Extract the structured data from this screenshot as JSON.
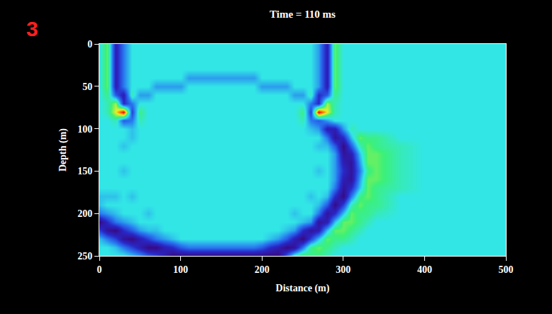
{
  "chart_data": {
    "type": "heatmap",
    "title": "Time = 110 ms",
    "x_label": "Distance (m)",
    "y_label": "Depth (m)",
    "annotations": [
      {
        "text": "3",
        "color": "#ff2020"
      }
    ],
    "grid": false,
    "xlim": [
      0,
      500
    ],
    "ylim": [
      250,
      0
    ],
    "xticks": [
      0,
      100,
      200,
      300,
      400,
      500
    ],
    "yticks": [
      0,
      50,
      100,
      150,
      200,
      250
    ],
    "zlim": [
      -10,
      10
    ],
    "x": [
      0,
      10,
      20,
      30,
      40,
      50,
      60,
      70,
      80,
      90,
      100,
      110,
      120,
      130,
      140,
      150,
      160,
      170,
      180,
      190,
      200,
      210,
      220,
      230,
      240,
      250,
      260,
      270,
      280,
      290,
      300,
      310,
      320,
      330,
      340,
      370,
      400,
      450,
      500
    ],
    "y": [
      0,
      10,
      20,
      30,
      40,
      50,
      60,
      70,
      80,
      90,
      100,
      110,
      120,
      130,
      140,
      150,
      160,
      170,
      180,
      190,
      200,
      210,
      220,
      230,
      240,
      250
    ],
    "z": [
      [
        0,
        3,
        -7,
        -3,
        0,
        0,
        0,
        0,
        0,
        0,
        0,
        0,
        0,
        0,
        0,
        0,
        0,
        0,
        0,
        0,
        0,
        0,
        0,
        0,
        0,
        0,
        0,
        -2,
        -7,
        3,
        0,
        0,
        0,
        0,
        0,
        0,
        0,
        0,
        0
      ],
      [
        0,
        3,
        -7,
        -3,
        0,
        0,
        0,
        0,
        0,
        0,
        0,
        0,
        0,
        0,
        0,
        0,
        0,
        0,
        0,
        0,
        0,
        0,
        0,
        0,
        0,
        0,
        0,
        -2,
        -7,
        3,
        0,
        0,
        0,
        0,
        0,
        0,
        0,
        0,
        0
      ],
      [
        0,
        3,
        -7,
        -3,
        0,
        0,
        0,
        0,
        0,
        0,
        0,
        0,
        0,
        0,
        0,
        0,
        0,
        0,
        0,
        0,
        0,
        0,
        0,
        0,
        0,
        0,
        0,
        -2,
        -7,
        3,
        0,
        0,
        0,
        0,
        0,
        0,
        0,
        0,
        0
      ],
      [
        0,
        3,
        -7,
        -3,
        0,
        0,
        0,
        0,
        0,
        0,
        0,
        0,
        0,
        0,
        0,
        0,
        0,
        0,
        0,
        0,
        0,
        0,
        0,
        0,
        0,
        0,
        0,
        -2,
        -7,
        3,
        0,
        0,
        0,
        0,
        0,
        0,
        0,
        0,
        0
      ],
      [
        0,
        3,
        -7,
        -3,
        0,
        0,
        0,
        0,
        0,
        0,
        0,
        -2,
        -2,
        -2,
        -2,
        -2,
        -2,
        -2,
        -2,
        -2,
        0,
        0,
        0,
        0,
        0,
        0,
        0,
        -2,
        -7,
        3,
        0,
        0,
        0,
        0,
        0,
        0,
        0,
        0,
        0
      ],
      [
        0,
        3,
        -7,
        -3,
        0,
        0,
        0,
        -2,
        -2,
        -2,
        -2,
        0,
        0,
        0,
        0,
        0,
        0,
        0,
        0,
        0,
        -2,
        -2,
        -2,
        -2,
        0,
        0,
        0,
        -2,
        -7,
        3,
        0,
        0,
        0,
        0,
        0,
        0,
        0,
        0,
        0
      ],
      [
        0,
        2,
        -4,
        -7,
        1,
        -2,
        -2,
        0,
        0,
        0,
        0,
        0,
        0,
        0,
        0,
        0,
        0,
        0,
        0,
        0,
        0,
        0,
        0,
        0,
        -2,
        -2,
        1,
        -6,
        -4,
        2,
        0,
        0,
        0,
        0,
        0,
        0,
        0,
        0,
        0
      ],
      [
        0,
        1,
        4,
        -6,
        -3,
        0,
        0,
        0,
        0,
        0,
        0,
        0,
        0,
        0,
        0,
        0,
        0,
        0,
        0,
        0,
        0,
        0,
        0,
        0,
        0,
        0,
        -3,
        -6,
        4,
        1,
        0,
        0,
        0,
        0,
        0,
        0,
        0,
        0,
        0
      ],
      [
        0,
        1,
        5,
        10,
        -5,
        2,
        0,
        0,
        0,
        0,
        0,
        0,
        0,
        0,
        0,
        0,
        0,
        0,
        0,
        0,
        0,
        0,
        0,
        0,
        0,
        2,
        -5,
        10,
        5,
        1,
        0,
        0,
        0,
        0,
        0,
        0,
        0,
        0,
        0
      ],
      [
        0,
        0,
        1,
        -4,
        -3,
        1,
        0,
        0,
        0,
        0,
        0,
        0,
        0,
        0,
        0,
        0,
        0,
        0,
        0,
        0,
        0,
        0,
        0,
        0,
        0,
        1,
        -3,
        -4,
        -2,
        0,
        0,
        0,
        0,
        0,
        0,
        0,
        0,
        0,
        0
      ],
      [
        0,
        0,
        0,
        0,
        -1,
        0,
        0,
        0,
        0,
        0,
        0,
        0,
        0,
        0,
        0,
        0,
        0,
        0,
        0,
        0,
        0,
        0,
        0,
        0,
        0,
        0,
        -1,
        -2,
        -7,
        -7,
        -2,
        1,
        0,
        0,
        0,
        0,
        0,
        0,
        0
      ],
      [
        0,
        0,
        0,
        0,
        -1,
        0,
        0,
        0,
        0,
        0,
        0,
        0,
        0,
        0,
        0,
        0,
        0,
        0,
        0,
        0,
        0,
        0,
        0,
        0,
        0,
        0,
        0,
        0,
        -3,
        -8,
        -6,
        -1,
        3,
        2,
        2,
        0,
        0,
        0,
        0
      ],
      [
        0,
        0,
        0,
        -1,
        0,
        0,
        0,
        0,
        0,
        0,
        0,
        0,
        0,
        0,
        0,
        0,
        0,
        0,
        0,
        0,
        0,
        0,
        0,
        0,
        0,
        0,
        0,
        -1,
        -1,
        -4,
        -9,
        -4,
        1,
        3,
        2,
        1,
        0,
        0,
        0
      ],
      [
        0,
        0,
        0,
        0,
        0,
        0,
        0,
        0,
        0,
        0,
        0,
        0,
        0,
        0,
        0,
        0,
        0,
        0,
        0,
        0,
        0,
        0,
        0,
        0,
        0,
        0,
        0,
        0,
        0,
        -2,
        -8,
        -7,
        -1,
        3,
        3,
        1,
        0,
        0,
        0
      ],
      [
        0,
        0,
        0,
        0,
        0,
        0,
        0,
        0,
        0,
        0,
        0,
        0,
        0,
        0,
        0,
        0,
        0,
        0,
        0,
        0,
        0,
        0,
        0,
        0,
        0,
        0,
        0,
        0,
        0,
        -2,
        -7,
        -8,
        -2,
        3,
        3,
        1,
        0,
        0,
        0
      ],
      [
        0,
        0,
        0,
        -1,
        0,
        0,
        0,
        0,
        0,
        0,
        0,
        0,
        0,
        0,
        0,
        0,
        0,
        0,
        0,
        0,
        0,
        0,
        0,
        0,
        0,
        0,
        0,
        -1,
        0,
        -2,
        -6,
        -8,
        -3,
        2,
        3,
        1,
        0,
        0,
        0
      ],
      [
        0,
        0,
        0,
        0,
        0,
        0,
        0,
        0,
        0,
        0,
        0,
        0,
        0,
        0,
        0,
        0,
        0,
        0,
        0,
        0,
        0,
        0,
        0,
        0,
        0,
        0,
        0,
        0,
        0,
        -2,
        -7,
        -8,
        -2,
        3,
        3,
        1,
        0,
        0,
        0
      ],
      [
        0,
        0,
        0,
        0,
        0,
        0,
        0,
        0,
        0,
        0,
        0,
        0,
        0,
        0,
        0,
        0,
        0,
        0,
        0,
        0,
        0,
        0,
        0,
        0,
        0,
        0,
        0,
        0,
        0,
        -3,
        -8,
        -6,
        -1,
        3,
        2,
        1,
        0,
        0,
        0
      ],
      [
        -1,
        -1,
        -1,
        0,
        -1,
        0,
        0,
        0,
        0,
        0,
        0,
        0,
        0,
        0,
        0,
        0,
        0,
        0,
        0,
        0,
        0,
        0,
        0,
        0,
        0,
        0,
        -1,
        0,
        -1,
        -6,
        -9,
        -3,
        2,
        3,
        2,
        0,
        0,
        0,
        0
      ],
      [
        -1,
        0,
        0,
        0,
        0,
        0,
        0,
        0,
        0,
        0,
        0,
        0,
        0,
        0,
        0,
        0,
        0,
        0,
        0,
        0,
        0,
        0,
        0,
        0,
        0,
        0,
        0,
        -1,
        -4,
        -9,
        -5,
        1,
        3,
        2,
        2,
        0,
        0,
        0,
        0
      ],
      [
        -3,
        -2,
        -1,
        0,
        0,
        0,
        -1,
        0,
        0,
        0,
        0,
        0,
        0,
        0,
        0,
        0,
        0,
        0,
        0,
        0,
        0,
        0,
        0,
        0,
        -1,
        0,
        0,
        -3,
        -8,
        -6,
        -1,
        3,
        2,
        2,
        1,
        0,
        0,
        0,
        0
      ],
      [
        -9,
        -6,
        -3,
        -2,
        -1,
        0,
        0,
        0,
        0,
        0,
        0,
        0,
        0,
        0,
        0,
        0,
        0,
        0,
        0,
        0,
        0,
        0,
        0,
        0,
        0,
        -1,
        -2,
        -8,
        -7,
        -1,
        3,
        3,
        2,
        1,
        0,
        0,
        0,
        0,
        0
      ],
      [
        -5,
        -8,
        -9,
        -6,
        -4,
        -2,
        -1,
        -1,
        0,
        0,
        0,
        0,
        0,
        0,
        0,
        0,
        0,
        0,
        0,
        0,
        0,
        0,
        0,
        -1,
        -2,
        -6,
        -8,
        -7,
        -1,
        3,
        3,
        2,
        1,
        0,
        0,
        0,
        0,
        0,
        0
      ],
      [
        -1,
        -3,
        -5,
        -8,
        -9,
        -7,
        -5,
        -3,
        -2,
        -1,
        0,
        0,
        0,
        0,
        0,
        0,
        0,
        0,
        0,
        0,
        0,
        -1,
        -2,
        -4,
        -7,
        -9,
        -5,
        -1,
        3,
        2,
        2,
        1,
        0,
        0,
        0,
        0,
        0,
        0,
        0
      ],
      [
        0,
        0,
        -1,
        -3,
        -5,
        -7,
        -9,
        -9,
        -7,
        -6,
        -4,
        -3,
        -3,
        -3,
        -3,
        -3,
        -3,
        -3,
        -3,
        -3,
        -4,
        -6,
        -7,
        -9,
        -8,
        -3,
        2,
        3,
        2,
        1,
        0,
        0,
        0,
        0,
        0,
        0,
        0,
        0,
        0
      ],
      [
        0,
        0,
        0,
        0,
        -1,
        -2,
        -4,
        -5,
        -7,
        -9,
        -9,
        -9,
        -9,
        -9,
        -9,
        -9,
        -9,
        -9,
        -9,
        -9,
        -9,
        -9,
        -9,
        -4,
        1,
        3,
        2,
        2,
        1,
        0,
        0,
        0,
        0,
        0,
        0,
        0,
        0,
        0,
        0
      ]
    ]
  }
}
